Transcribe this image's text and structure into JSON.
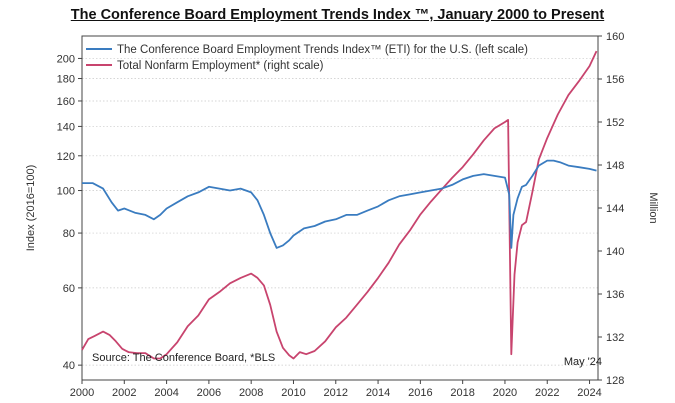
{
  "title": "The Conference Board Employment Trends Index ™, January 2000 to Present",
  "chart_data": {
    "type": "line",
    "title": "The Conference Board Employment Trends Index ™, January 2000 to Present",
    "ylabel_left": "Index (2016=100)",
    "ylabel_right": "Million",
    "left_scale": "log",
    "grid": true,
    "legend_position": "top-left",
    "source": "Source: The Conference Board, *BLS",
    "date_note": "May '24",
    "x_ticks": [
      "2000",
      "2002",
      "2004",
      "2006",
      "2008",
      "2010",
      "2012",
      "2014",
      "2016",
      "2018",
      "2020",
      "2022",
      "2024"
    ],
    "xlim": [
      2000,
      2024.4
    ],
    "y_left_ticks": [
      40,
      60,
      80,
      100,
      120,
      140,
      160,
      180,
      200
    ],
    "ylim_left": [
      37,
      225
    ],
    "y_right_ticks": [
      128,
      132,
      136,
      140,
      144,
      148,
      152,
      156,
      160
    ],
    "ylim_right": [
      128,
      160
    ],
    "series": [
      {
        "name": "The Conference Board Employment Trends Index™ (ETI) for the U.S. (left scale)",
        "axis": "left",
        "color": "#3a7cc0",
        "x": [
          2000.0,
          2000.5,
          2001.0,
          2001.4,
          2001.7,
          2002.0,
          2002.5,
          2003.0,
          2003.4,
          2003.7,
          2004.0,
          2004.5,
          2005.0,
          2005.5,
          2006.0,
          2006.5,
          2007.0,
          2007.5,
          2008.0,
          2008.3,
          2008.6,
          2008.9,
          2009.2,
          2009.5,
          2009.8,
          2010.0,
          2010.5,
          2011.0,
          2011.5,
          2012.0,
          2012.5,
          2013.0,
          2013.5,
          2014.0,
          2014.5,
          2015.0,
          2015.5,
          2016.0,
          2016.5,
          2017.0,
          2017.5,
          2018.0,
          2018.5,
          2019.0,
          2019.5,
          2020.0,
          2020.2,
          2020.3,
          2020.4,
          2020.6,
          2020.8,
          2021.0,
          2021.3,
          2021.6,
          2022.0,
          2022.3,
          2022.6,
          2023.0,
          2023.5,
          2024.0,
          2024.33
        ],
        "values": [
          104,
          104,
          101,
          94,
          90,
          91,
          89,
          88,
          86,
          88,
          91,
          94,
          97,
          99,
          102,
          101,
          100,
          101,
          99,
          95,
          88,
          80,
          74,
          75,
          77,
          79,
          82,
          83,
          85,
          86,
          88,
          88,
          90,
          92,
          95,
          97,
          98,
          99,
          100,
          101,
          103,
          106,
          108,
          109,
          108,
          107,
          98,
          74,
          88,
          96,
          102,
          103,
          108,
          114,
          117,
          117,
          116,
          114,
          113,
          112,
          111
        ]
      },
      {
        "name": "Total Nonfarm Employment* (right scale)",
        "axis": "right",
        "color": "#c8446e",
        "x": [
          2000.0,
          2000.3,
          2000.6,
          2001.0,
          2001.3,
          2001.6,
          2001.9,
          2002.2,
          2002.6,
          2003.0,
          2003.4,
          2003.7,
          2004.0,
          2004.5,
          2005.0,
          2005.5,
          2006.0,
          2006.5,
          2007.0,
          2007.5,
          2008.0,
          2008.3,
          2008.6,
          2008.9,
          2009.2,
          2009.5,
          2009.8,
          2010.0,
          2010.3,
          2010.6,
          2011.0,
          2011.5,
          2012.0,
          2012.5,
          2013.0,
          2013.5,
          2014.0,
          2014.5,
          2015.0,
          2015.5,
          2016.0,
          2016.5,
          2017.0,
          2017.5,
          2018.0,
          2018.5,
          2019.0,
          2019.5,
          2020.0,
          2020.15,
          2020.3,
          2020.45,
          2020.6,
          2020.8,
          2021.0,
          2021.3,
          2021.6,
          2022.0,
          2022.5,
          2023.0,
          2023.5,
          2024.0,
          2024.33
        ],
        "values": [
          130.8,
          131.8,
          132.1,
          132.5,
          132.2,
          131.6,
          130.9,
          130.6,
          130.5,
          130.5,
          130.0,
          130.0,
          130.4,
          131.5,
          133.0,
          134.0,
          135.5,
          136.2,
          137.0,
          137.5,
          137.9,
          137.5,
          136.8,
          135.0,
          132.5,
          131.0,
          130.3,
          130.0,
          130.6,
          130.4,
          130.7,
          131.6,
          132.9,
          133.8,
          135.0,
          136.2,
          137.5,
          138.9,
          140.6,
          141.9,
          143.4,
          144.6,
          145.7,
          146.8,
          147.8,
          149.0,
          150.3,
          151.4,
          152.0,
          152.2,
          130.4,
          137.8,
          140.8,
          142.4,
          142.7,
          145.5,
          148.5,
          150.5,
          152.7,
          154.5,
          155.8,
          157.2,
          158.6
        ]
      }
    ]
  }
}
